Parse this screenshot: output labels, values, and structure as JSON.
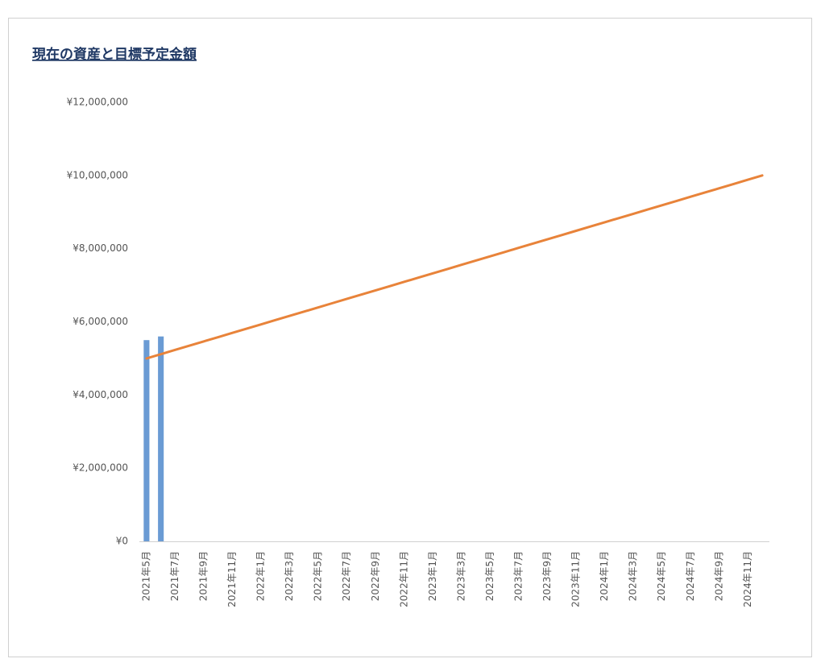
{
  "chart_data": {
    "type": "combo",
    "title": "現在の資産と目標予定金額",
    "categories": [
      "2021年5月",
      null,
      "2021年7月",
      null,
      "2021年9月",
      null,
      "2021年11月",
      null,
      "2022年1月",
      null,
      "2022年3月",
      null,
      "2022年5月",
      null,
      "2022年7月",
      null,
      "2022年9月",
      null,
      "2022年11月",
      null,
      "2023年1月",
      null,
      "2023年3月",
      null,
      "2023年5月",
      null,
      "2023年7月",
      null,
      "2023年9月",
      null,
      "2023年11月",
      null,
      "2024年1月",
      null,
      "2024年3月",
      null,
      "2024年5月",
      null,
      "2024年7月",
      null,
      "2024年9月",
      null,
      "2024年11月",
      null
    ],
    "series": [
      {
        "type": "bar",
        "color": "#6a9bd4",
        "values": [
          5500000,
          5600000,
          null,
          null,
          null,
          null,
          null,
          null,
          null,
          null,
          null,
          null,
          null,
          null,
          null,
          null,
          null,
          null,
          null,
          null,
          null,
          null,
          null,
          null,
          null,
          null,
          null,
          null,
          null,
          null,
          null,
          null,
          null,
          null,
          null,
          null,
          null,
          null,
          null,
          null,
          null,
          null,
          null,
          null
        ]
      },
      {
        "type": "line",
        "color": "#e8833a",
        "values": [
          5000000,
          5116000,
          5233000,
          5349000,
          5465000,
          5581000,
          5698000,
          5814000,
          5930000,
          6047000,
          6163000,
          6279000,
          6395000,
          6512000,
          6628000,
          6744000,
          6860000,
          6977000,
          7093000,
          7209000,
          7326000,
          7442000,
          7558000,
          7674000,
          7791000,
          7907000,
          8023000,
          8140000,
          8256000,
          8372000,
          8488000,
          8605000,
          8721000,
          8837000,
          8953000,
          9070000,
          9186000,
          9302000,
          9419000,
          9535000,
          9651000,
          9767000,
          9884000,
          10000000
        ]
      }
    ],
    "ylim": [
      0,
      12000000
    ],
    "yticks": [
      {
        "value": 0,
        "label": "¥0"
      },
      {
        "value": 2000000,
        "label": "¥2,000,000"
      },
      {
        "value": 4000000,
        "label": "¥4,000,000"
      },
      {
        "value": 6000000,
        "label": "¥6,000,000"
      },
      {
        "value": 8000000,
        "label": "¥8,000,000"
      },
      {
        "value": 10000000,
        "label": "¥10,000,000"
      },
      {
        "value": 12000000,
        "label": "¥12,000,000"
      }
    ],
    "grid": false
  }
}
